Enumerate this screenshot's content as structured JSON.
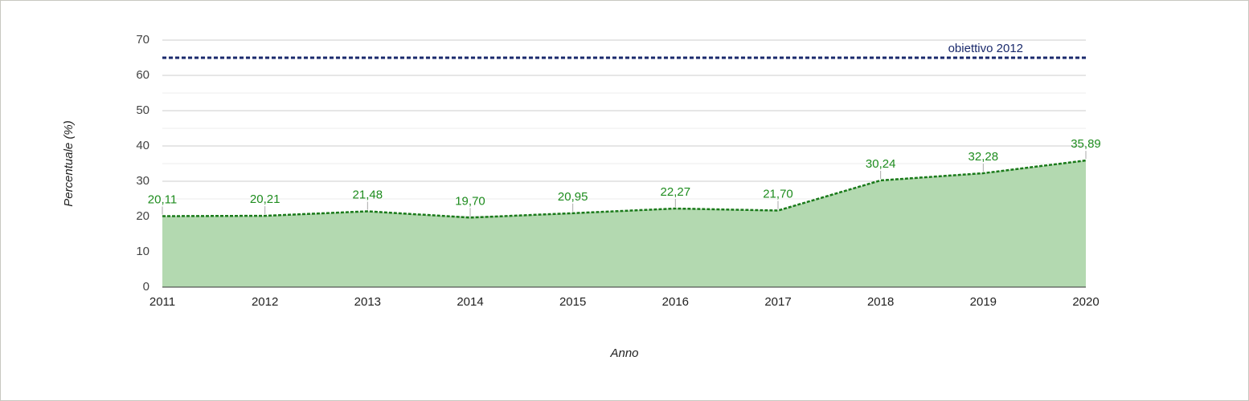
{
  "chart_data": {
    "type": "area",
    "x": [
      2011,
      2012,
      2013,
      2014,
      2015,
      2016,
      2017,
      2018,
      2019,
      2020
    ],
    "values": [
      20.11,
      20.21,
      21.48,
      19.7,
      20.95,
      22.27,
      21.7,
      30.24,
      32.28,
      35.89
    ],
    "value_labels": [
      "20,11",
      "20,21",
      "21,48",
      "19,70",
      "20,95",
      "22,27",
      "21,70",
      "30,24",
      "32,28",
      "35,89"
    ],
    "color": "#1a7a1a",
    "fill_color": "#b3d9b0",
    "label_color": "#1e8c1e",
    "xlim": [
      2011,
      2020
    ],
    "xticks": [
      2011,
      2012,
      2013,
      2014,
      2015,
      2016,
      2017,
      2018,
      2019,
      2020
    ],
    "ylim": [
      0,
      70
    ],
    "yticks": [
      0,
      10,
      20,
      30,
      40,
      50,
      60,
      70
    ],
    "minor_yticks": [
      5,
      15,
      25,
      35,
      45,
      55,
      65
    ],
    "grid": true,
    "x_label": "Anno",
    "y_label": "Percentuale (%)",
    "reference_lines": [
      {
        "value": 65,
        "label": "obiettivo 2012",
        "color": "#1a2a6c"
      }
    ]
  }
}
